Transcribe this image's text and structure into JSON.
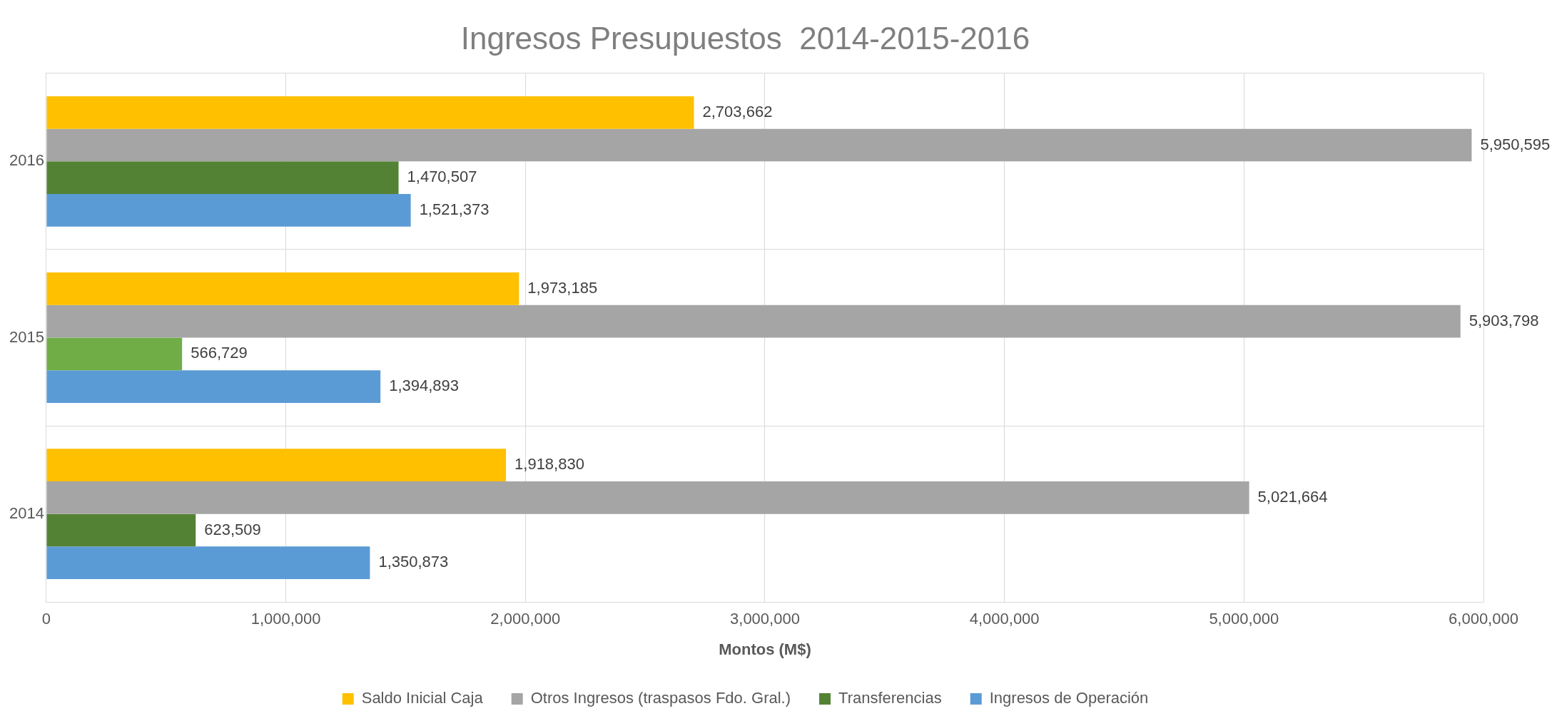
{
  "chart_data": {
    "type": "bar",
    "orientation": "horizontal",
    "title": "Ingresos Presupuestos  2014-2015-2016",
    "xlabel": "Montos (M$)",
    "categories": [
      "2016",
      "2015",
      "2014"
    ],
    "series": [
      {
        "name": "Saldo Inicial Caja",
        "color": "#ffc000",
        "values": [
          2703662,
          1973185,
          1918830
        ],
        "value_labels": [
          "2,703,662",
          "1,973,185",
          "1,918,830"
        ]
      },
      {
        "name": "Otros Ingresos (traspasos Fdo. Gral.)",
        "color": "#a5a5a5",
        "values": [
          5950595,
          5903798,
          5021664
        ],
        "value_labels": [
          "5,950,595",
          "5,903,798",
          "5,021,664"
        ]
      },
      {
        "name": "Transferencias",
        "color": "#548235",
        "colors": [
          "#548235",
          "#70ad47",
          "#548235"
        ],
        "values": [
          1470507,
          566729,
          623509
        ],
        "value_labels": [
          "1,470,507",
          "566,729",
          "623,509"
        ]
      },
      {
        "name": "Ingresos de Operación",
        "color": "#5b9bd5",
        "values": [
          1521373,
          1394893,
          1350873
        ],
        "value_labels": [
          "1,521,373",
          "1,394,893",
          "1,350,873"
        ]
      }
    ],
    "xlim": [
      0,
      6000000
    ],
    "xticks": [
      {
        "value": 0,
        "label": "0"
      },
      {
        "value": 1000000,
        "label": "1,000,000"
      },
      {
        "value": 2000000,
        "label": "2,000,000"
      },
      {
        "value": 3000000,
        "label": "3,000,000"
      },
      {
        "value": 4000000,
        "label": "4,000,000"
      },
      {
        "value": 5000000,
        "label": "5,000,000"
      },
      {
        "value": 6000000,
        "label": "6,000,000"
      }
    ],
    "grid": true,
    "legend": "bottom"
  }
}
